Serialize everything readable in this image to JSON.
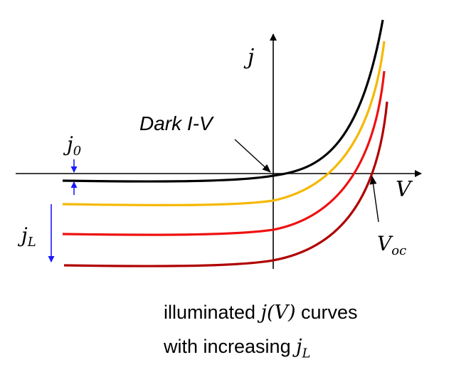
{
  "labels": {
    "y_axis": "j",
    "x_axis": "V",
    "dark_curve": "Dark I-V",
    "saturation_current": "j",
    "saturation_current_sub": "0",
    "photocurrent": "j",
    "photocurrent_sub": "L",
    "open_circuit_voltage": "V",
    "open_circuit_voltage_sub": "oc"
  },
  "caption": {
    "line1_text": "illuminated ",
    "line1_math": "j(V)",
    "line1_end": " curves",
    "line2_text": "with increasing ",
    "line2_math": "j",
    "line2_sub": "L"
  },
  "colors": {
    "dark": "#000000",
    "curve_1": "#f5b800",
    "curve_2": "#ee1111",
    "curve_3": "#b00000",
    "arrows": "#1a1aff"
  }
}
